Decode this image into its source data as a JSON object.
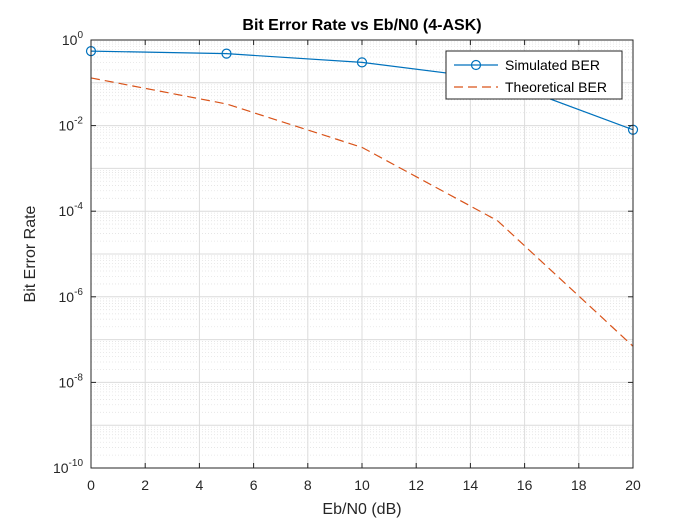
{
  "chart_data": {
    "type": "line",
    "title": "Bit Error Rate vs Eb/N0 (4-ASK)",
    "xlabel": "Eb/N0 (dB)",
    "ylabel": "Bit Error Rate",
    "xlim": [
      0,
      20
    ],
    "ylim": [
      1e-10,
      1
    ],
    "yscale": "log",
    "grid": true,
    "minor_grid": true,
    "legend_position": "top-right",
    "x_ticks": [
      "0",
      "2",
      "4",
      "6",
      "8",
      "10",
      "12",
      "14",
      "16",
      "18",
      "20"
    ],
    "y_ticks": [
      {
        "base": "10",
        "exp": "0"
      },
      {
        "base": "10",
        "exp": "-2"
      },
      {
        "base": "10",
        "exp": "-4"
      },
      {
        "base": "10",
        "exp": "-6"
      },
      {
        "base": "10",
        "exp": "-8"
      },
      {
        "base": "10",
        "exp": "-10"
      }
    ],
    "series": [
      {
        "name": "Simulated BER",
        "color": "#0072BD",
        "line_style": "solid",
        "marker": "circle",
        "x": [
          0,
          5,
          10,
          15,
          20
        ],
        "y": [
          0.55,
          0.48,
          0.3,
          0.12,
          0.008
        ]
      },
      {
        "name": "Theoretical BER",
        "color": "#D95319",
        "line_style": "dashed",
        "marker": "none",
        "x": [
          0,
          5,
          10,
          15,
          20
        ],
        "y": [
          0.13,
          0.032,
          0.0031,
          6e-05,
          7e-08
        ]
      }
    ]
  }
}
